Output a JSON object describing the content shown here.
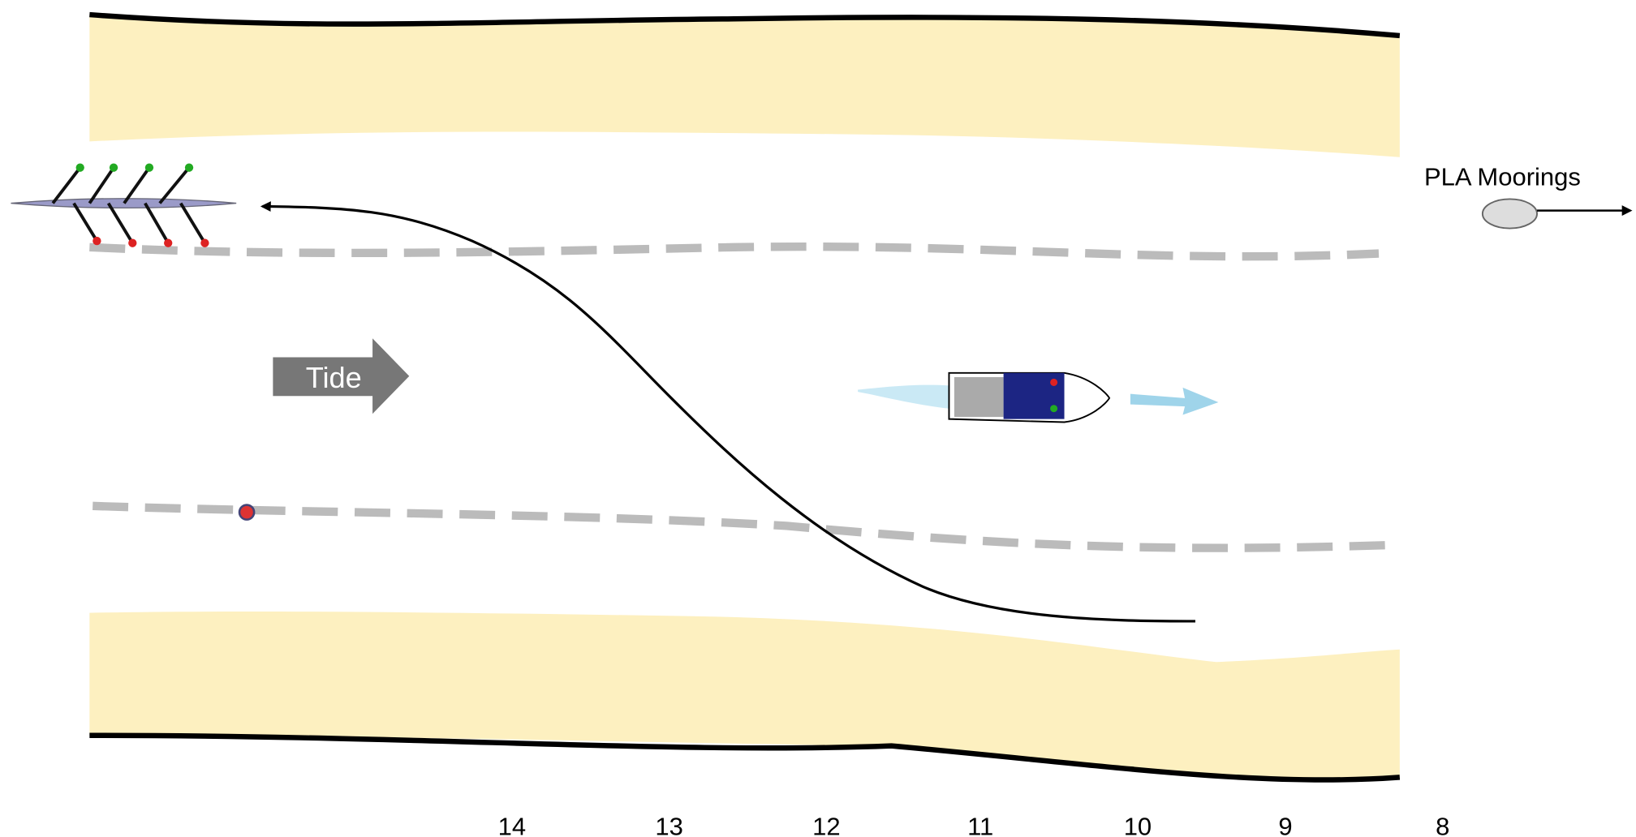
{
  "labels": {
    "tide": "Tide",
    "moorings": "PLA Moorings"
  },
  "markers": [
    "14",
    "13",
    "12",
    "11",
    "10",
    "9",
    "8"
  ]
}
